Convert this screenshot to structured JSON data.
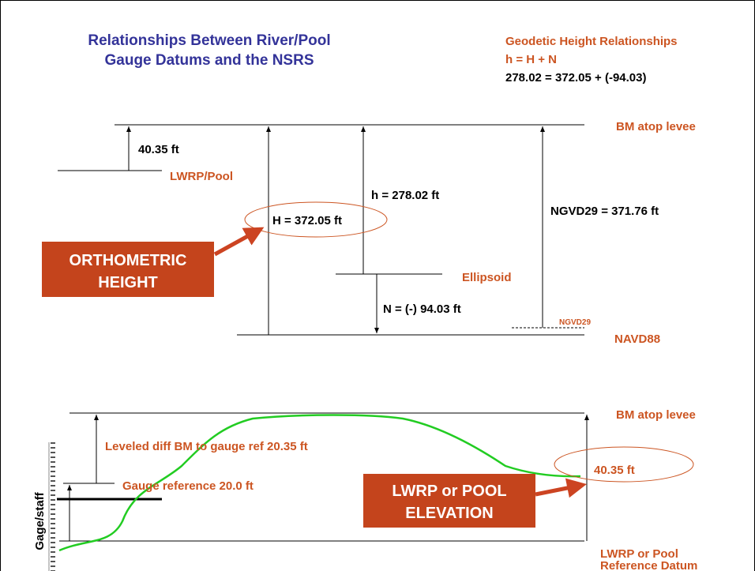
{
  "title": [
    "Relationships Between River/Pool",
    "Gauge Datums and the NSRS"
  ],
  "geodetic": {
    "heading": "Geodetic Height Relationships",
    "formula": "h = H + N",
    "example": "278.02 = 372.05 + (-94.03)"
  },
  "top_diagram": {
    "bm": "BM atop levee",
    "lwrp_diff": "40.35 ft",
    "lwrp": "LWRP/Pool",
    "H": "H = 372.05 ft",
    "h": "h = 278.02 ft",
    "ngvd_height": "NGVD29 = 371.76 ft",
    "ellipsoid": "Ellipsoid",
    "N": "N = (-) 94.03 ft",
    "ngvd29": "NGVD29",
    "navd88": "NAVD88",
    "callout": [
      "ORTHOMETRIC",
      "HEIGHT"
    ]
  },
  "bottom_diagram": {
    "bm": "BM atop levee",
    "leveled": "Leveled diff BM to gauge ref  20.35 ft",
    "gauge_ref": "Gauge reference 20.0 ft",
    "elevation": "40.35 ft",
    "callout": [
      "LWRP or POOL",
      "ELEVATION"
    ],
    "datum": [
      "LWRP or Pool",
      "Reference Datum"
    ],
    "staff": "Gage/staff"
  }
}
